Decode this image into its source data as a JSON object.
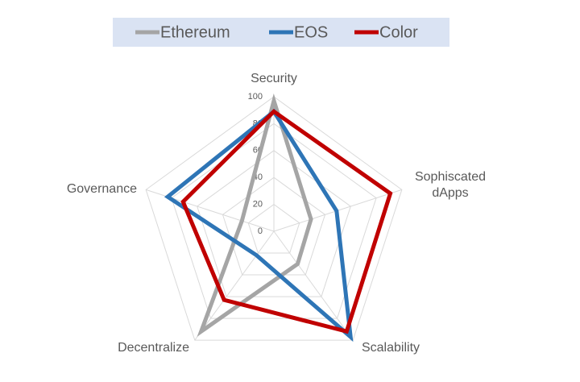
{
  "chart_data": {
    "type": "radar",
    "categories": [
      "Security",
      "Sophiscated dApps",
      "Scalability",
      "Decentralize",
      "Governance"
    ],
    "series": [
      {
        "name": "Ethereum",
        "color": "#a5a5a5",
        "values": [
          97,
          29,
          30,
          92,
          25
        ]
      },
      {
        "name": "EOS",
        "color": "#2e75b6",
        "values": [
          89,
          49,
          97,
          22,
          83
        ]
      },
      {
        "name": "Color",
        "color": "#c00000",
        "values": [
          89,
          91,
          92,
          63,
          71
        ]
      }
    ],
    "rlim": [
      0,
      100
    ],
    "rticks": [
      0,
      20,
      40,
      60,
      80,
      100
    ],
    "grid": true,
    "legend": "top"
  }
}
